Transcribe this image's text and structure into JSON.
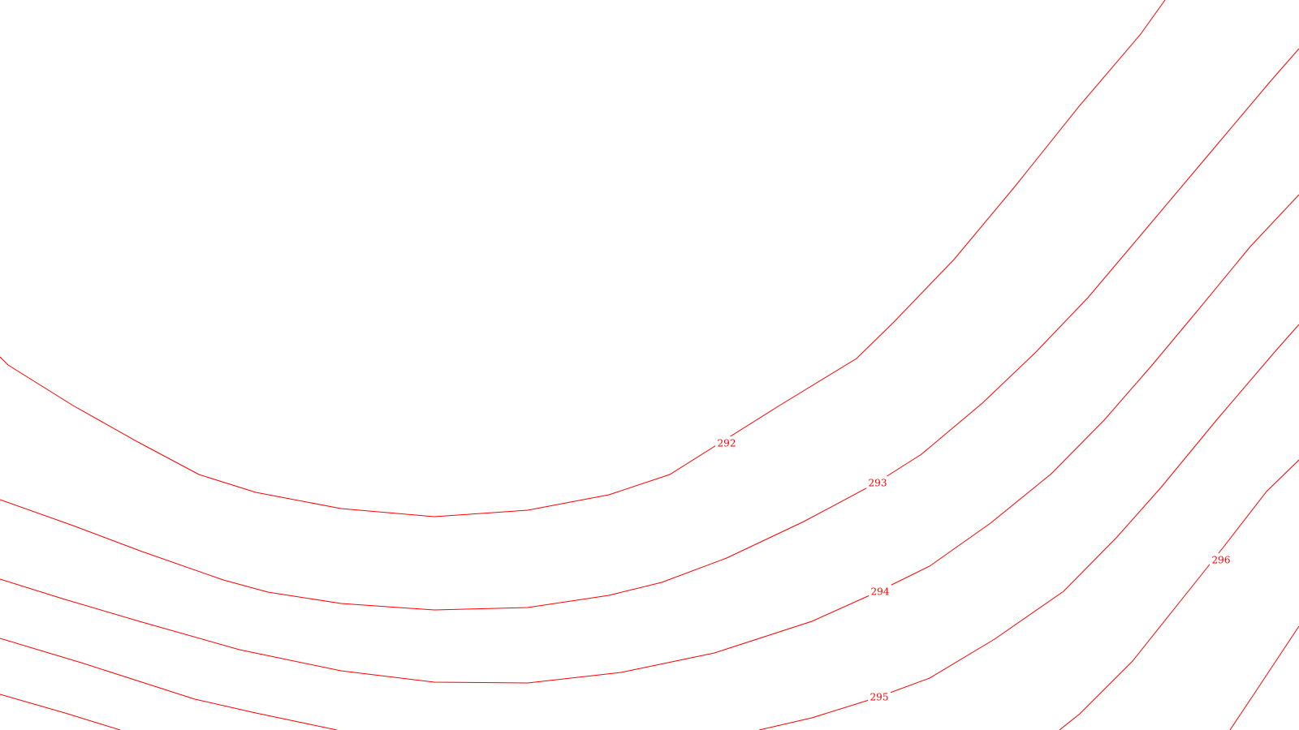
{
  "map": {
    "background_color": "#ffffff",
    "contour_color": "#ff0000",
    "contours": [
      {
        "elevation": "292",
        "label": "292"
      },
      {
        "elevation": "293",
        "label": "293"
      },
      {
        "elevation": "294",
        "label": "294"
      },
      {
        "elevation": "295",
        "label": "295"
      },
      {
        "elevation": "296",
        "label": "296"
      }
    ]
  }
}
